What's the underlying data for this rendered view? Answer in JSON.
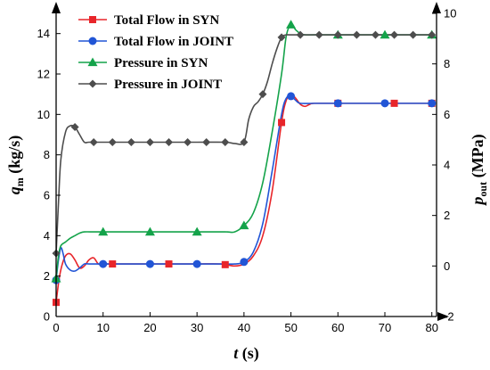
{
  "chart_data": {
    "type": "line",
    "x_axis": {
      "label_main": "t",
      "label_unit": " (s)",
      "range": [
        0,
        81
      ],
      "ticks": [
        0,
        10,
        20,
        30,
        40,
        50,
        60,
        70,
        80
      ]
    },
    "y_left": {
      "label_main": "q",
      "label_sub": "m",
      "label_unit": " (kg/s)",
      "range": [
        0,
        15
      ],
      "ticks": [
        0,
        2,
        4,
        6,
        8,
        10,
        12,
        14
      ]
    },
    "y_right": {
      "label_main": "p",
      "label_sub": "out",
      "label_unit": " (MPa)",
      "range": [
        -2,
        10
      ],
      "ticks": [
        -2,
        0,
        2,
        4,
        6,
        8,
        10
      ]
    },
    "legend_position": "top-left",
    "series": [
      {
        "name": "Total Flow in SYN",
        "axis": "left",
        "color": "#e8252a",
        "marker": "square",
        "points": [
          [
            0,
            0.7
          ],
          [
            0.6,
            1.8
          ],
          [
            1.2,
            2.5
          ],
          [
            2,
            3.0
          ],
          [
            3,
            3.1
          ],
          [
            4,
            2.8
          ],
          [
            5,
            2.4
          ],
          [
            6,
            2.5
          ],
          [
            7,
            2.8
          ],
          [
            8,
            2.9
          ],
          [
            9,
            2.6
          ],
          [
            10,
            2.6
          ],
          [
            15,
            2.6
          ],
          [
            20,
            2.6
          ],
          [
            25,
            2.6
          ],
          [
            30,
            2.6
          ],
          [
            35,
            2.6
          ],
          [
            38,
            2.5
          ],
          [
            40,
            2.6
          ],
          [
            42,
            3.0
          ],
          [
            44,
            4.0
          ],
          [
            46,
            6.2
          ],
          [
            48,
            9.6
          ],
          [
            49,
            10.7
          ],
          [
            50,
            11.0
          ],
          [
            51,
            10.8
          ],
          [
            52,
            10.5
          ],
          [
            53,
            10.4
          ],
          [
            54,
            10.5
          ],
          [
            55,
            10.55
          ],
          [
            60,
            10.55
          ],
          [
            70,
            10.55
          ],
          [
            80,
            10.55
          ]
        ],
        "marker_x": [
          0,
          12,
          24,
          36,
          48,
          60,
          72,
          80
        ]
      },
      {
        "name": "Total Flow in JOINT",
        "axis": "left",
        "color": "#2155d6",
        "marker": "circle",
        "points": [
          [
            0,
            1.8
          ],
          [
            0.5,
            2.8
          ],
          [
            1,
            3.4
          ],
          [
            1.5,
            3.1
          ],
          [
            2,
            2.6
          ],
          [
            3,
            2.3
          ],
          [
            4,
            2.25
          ],
          [
            5,
            2.4
          ],
          [
            6,
            2.6
          ],
          [
            7,
            2.6
          ],
          [
            10,
            2.6
          ],
          [
            20,
            2.6
          ],
          [
            30,
            2.6
          ],
          [
            35,
            2.6
          ],
          [
            38,
            2.6
          ],
          [
            40,
            2.7
          ],
          [
            42,
            3.2
          ],
          [
            44,
            4.6
          ],
          [
            46,
            7.2
          ],
          [
            48,
            10.0
          ],
          [
            49,
            10.8
          ],
          [
            50,
            10.9
          ],
          [
            51,
            10.7
          ],
          [
            52,
            10.55
          ],
          [
            55,
            10.55
          ],
          [
            60,
            10.55
          ],
          [
            70,
            10.55
          ],
          [
            80,
            10.55
          ]
        ],
        "marker_x": [
          0,
          10,
          20,
          30,
          40,
          50,
          60,
          70,
          80
        ]
      },
      {
        "name": "Pressure in SYN",
        "axis": "right",
        "color": "#14a34a",
        "marker": "triangle",
        "points": [
          [
            0,
            -0.5
          ],
          [
            0.5,
            0.4
          ],
          [
            1,
            0.8
          ],
          [
            2,
            0.95
          ],
          [
            3,
            1.1
          ],
          [
            4,
            1.2
          ],
          [
            5,
            1.3
          ],
          [
            6,
            1.35
          ],
          [
            8,
            1.35
          ],
          [
            10,
            1.35
          ],
          [
            20,
            1.35
          ],
          [
            30,
            1.35
          ],
          [
            36,
            1.35
          ],
          [
            38,
            1.35
          ],
          [
            40,
            1.6
          ],
          [
            42,
            2.1
          ],
          [
            44,
            3.3
          ],
          [
            46,
            5.3
          ],
          [
            48,
            7.6
          ],
          [
            49,
            9.1
          ],
          [
            50,
            9.55
          ],
          [
            51,
            9.35
          ],
          [
            52,
            9.2
          ],
          [
            53,
            9.15
          ],
          [
            55,
            9.15
          ],
          [
            60,
            9.15
          ],
          [
            70,
            9.15
          ],
          [
            80,
            9.15
          ]
        ],
        "marker_x": [
          0,
          10,
          20,
          30,
          40,
          50,
          60,
          70,
          80
        ]
      },
      {
        "name": "Pressure in JOINT",
        "axis": "right",
        "color": "#4d4d4d",
        "marker": "diamond",
        "points": [
          [
            0,
            0.5
          ],
          [
            0.5,
            2.5
          ],
          [
            1,
            4.2
          ],
          [
            2,
            5.3
          ],
          [
            3,
            5.55
          ],
          [
            4,
            5.5
          ],
          [
            5,
            5.2
          ],
          [
            6,
            4.9
          ],
          [
            7,
            4.9
          ],
          [
            10,
            4.9
          ],
          [
            20,
            4.9
          ],
          [
            30,
            4.9
          ],
          [
            36,
            4.9
          ],
          [
            38,
            4.85
          ],
          [
            40,
            4.9
          ],
          [
            41,
            5.8
          ],
          [
            42,
            6.3
          ],
          [
            43,
            6.5
          ],
          [
            44,
            6.8
          ],
          [
            45,
            7.3
          ],
          [
            46,
            8.0
          ],
          [
            47,
            8.6
          ],
          [
            48,
            9.05
          ],
          [
            49,
            9.15
          ],
          [
            50,
            9.15
          ],
          [
            55,
            9.15
          ],
          [
            60,
            9.15
          ],
          [
            70,
            9.15
          ],
          [
            80,
            9.15
          ]
        ],
        "marker_x": [
          0,
          4,
          8,
          12,
          16,
          20,
          24,
          28,
          32,
          36,
          40,
          44,
          48,
          52,
          56,
          60,
          64,
          68,
          72,
          76,
          80
        ]
      }
    ]
  }
}
